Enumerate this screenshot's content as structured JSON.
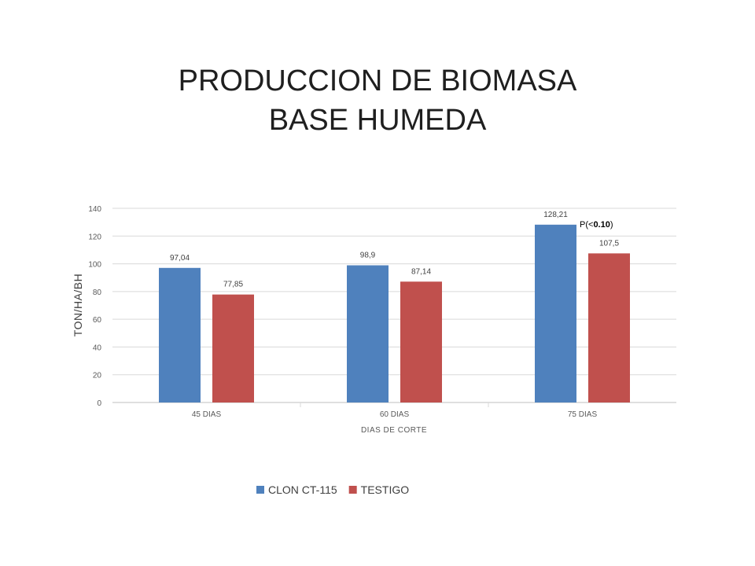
{
  "chart_data": {
    "type": "bar",
    "title_line1": "PRODUCCION DE BIOMASA",
    "title_line2": "BASE HUMEDA",
    "xlabel": "DIAS DE CORTE",
    "ylabel": "TON/HA/BH",
    "categories": [
      "45 DIAS",
      "60 DIAS",
      "75 DIAS"
    ],
    "ylim": [
      0,
      140
    ],
    "yticks": [
      0,
      20,
      40,
      60,
      80,
      100,
      120,
      140
    ],
    "grid": true,
    "legend_position": "bottom",
    "series": [
      {
        "name": "CLON CT-115",
        "color": "#4f81bd",
        "values": [
          97.04,
          98.9,
          128.21
        ],
        "labels": [
          "97,04",
          "98,9",
          "128,21"
        ]
      },
      {
        "name": "TESTIGO",
        "color": "#c0504d",
        "values": [
          77.85,
          87.14,
          107.5
        ],
        "labels": [
          "77,85",
          "87,14",
          "107,5"
        ]
      }
    ],
    "annotation": {
      "prefix": "P(<",
      "bold": "0.10",
      "suffix": ")"
    }
  }
}
